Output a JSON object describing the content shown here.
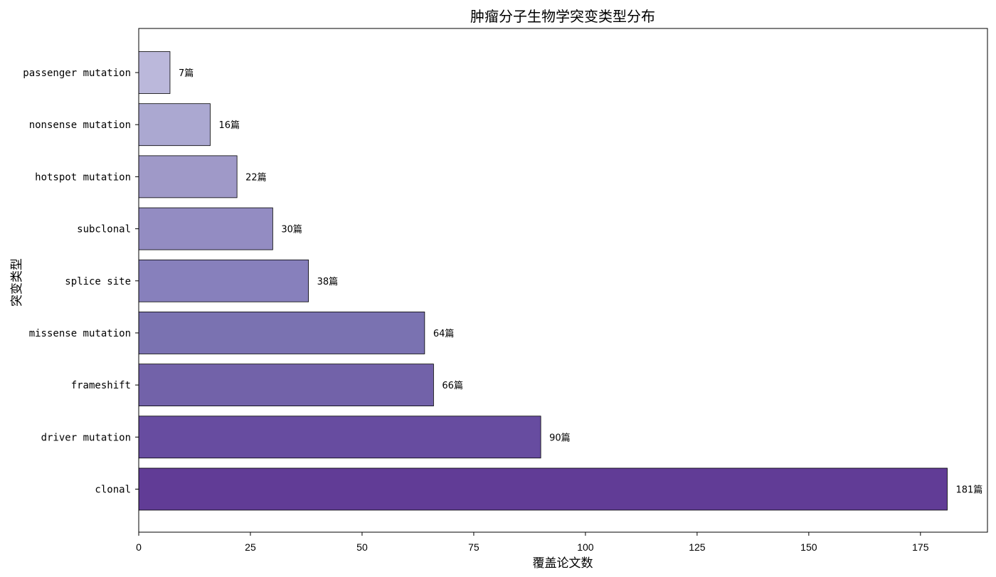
{
  "chart_data": {
    "type": "bar",
    "orientation": "horizontal",
    "title": "肿瘤分子生物学突变类型分布",
    "xlabel": "覆盖论文数",
    "ylabel": "突变类型",
    "xlim": [
      0,
      190
    ],
    "x_ticks": [
      "0",
      "25",
      "50",
      "75",
      "100",
      "125",
      "150",
      "175"
    ],
    "categories": [
      "passenger mutation",
      "nonsense mutation",
      "hotspot mutation",
      "subclonal",
      "splice site",
      "missense mutation",
      "frameshift",
      "driver mutation",
      "clonal"
    ],
    "values": [
      7,
      16,
      22,
      30,
      38,
      64,
      66,
      90,
      181
    ],
    "data_labels": [
      "7篇",
      "16篇",
      "22篇",
      "30篇",
      "38篇",
      "64篇",
      "66篇",
      "90篇",
      "181篇"
    ],
    "colors": [
      "#bbb8db",
      "#aba8d1",
      "#9f99c8",
      "#938cc2",
      "#8780bc",
      "#7a72b1",
      "#7262a9",
      "#674ca0",
      "#613c96"
    ],
    "grid": false,
    "legend": "none"
  }
}
